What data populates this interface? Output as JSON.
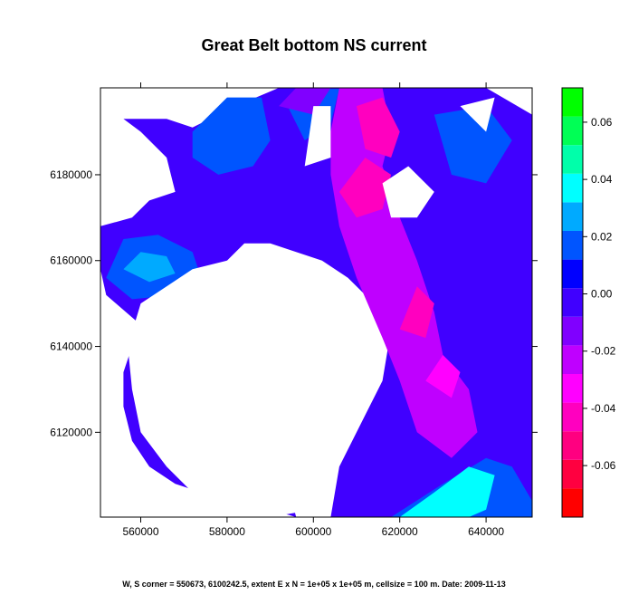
{
  "chart_data": {
    "type": "heatmap",
    "title": "Great Belt bottom NS current",
    "footnote": "W, S corner = 550673, 6100242.5, extent E x N = 1e+05 x 1e+05 m, cellsize = 100 m. Date: 2009-11-13",
    "xlim": [
      550673,
      650673
    ],
    "ylim": [
      6100242.5,
      6200242.5
    ],
    "x_ticks": [
      560000,
      580000,
      600000,
      620000,
      640000
    ],
    "x_tick_labels": [
      "560000",
      "580000",
      "600000",
      "620000",
      "640000"
    ],
    "y_ticks": [
      6120000,
      6140000,
      6160000,
      6180000
    ],
    "y_tick_labels": [
      "6120000",
      "6140000",
      "6160000",
      "6180000"
    ],
    "colorbar": {
      "range": [
        -0.078,
        0.072
      ],
      "breaks": [
        -0.078,
        -0.068,
        -0.058,
        -0.048,
        -0.038,
        -0.028,
        -0.018,
        -0.008,
        0.002,
        0.012,
        0.022,
        0.032,
        0.042,
        0.052,
        0.062,
        0.072
      ],
      "colors": [
        "#ff0000",
        "#ff0040",
        "#ff0080",
        "#ff00bf",
        "#ff00ff",
        "#bf00ff",
        "#8000ff",
        "#4000ff",
        "#0000ff",
        "#0055ff",
        "#00aaff",
        "#00ffff",
        "#00ffaa",
        "#00ff55",
        "#00ff00",
        "#80ff00"
      ],
      "ticks": [
        -0.06,
        -0.04,
        -0.02,
        0.0,
        0.02,
        0.04,
        0.06
      ],
      "tick_labels": [
        "-0.06",
        "-0.04",
        "-0.02",
        "0.00",
        "0.02",
        "0.04",
        "0.06"
      ]
    },
    "features": [
      {
        "name": "background",
        "value": -0.005,
        "path": [
          [
            550673,
            6100242
          ],
          [
            596000,
            6100242
          ],
          [
            594000,
            6108000
          ],
          [
            590000,
            6114000
          ],
          [
            586000,
            6116000
          ],
          [
            580000,
            6114000
          ],
          [
            570000,
            6118000
          ],
          [
            566000,
            6128000
          ],
          [
            563000,
            6139000
          ],
          [
            560000,
            6145000
          ],
          [
            552000,
            6152000
          ],
          [
            550673,
            6158000
          ],
          [
            550673,
            6168000
          ],
          [
            558000,
            6170000
          ],
          [
            562000,
            6174000
          ],
          [
            568000,
            6176000
          ],
          [
            566000,
            6184000
          ],
          [
            560000,
            6190000
          ],
          [
            556000,
            6193000
          ],
          [
            566000,
            6193000
          ],
          [
            572000,
            6191000
          ],
          [
            582000,
            6196000
          ],
          [
            592000,
            6200242
          ],
          [
            640000,
            6200242
          ],
          [
            650673,
            6194000
          ],
          [
            650673,
            6100242
          ],
          [
            604000,
            6100242
          ],
          [
            606000,
            6112000
          ],
          [
            612000,
            6124000
          ],
          [
            616000,
            6132000
          ],
          [
            618000,
            6144000
          ],
          [
            614000,
            6150000
          ],
          [
            608000,
            6156000
          ],
          [
            602000,
            6160000
          ],
          [
            596000,
            6162000
          ],
          [
            590000,
            6164000
          ],
          [
            584000,
            6164000
          ],
          [
            580000,
            6160000
          ],
          [
            576000,
            6158000
          ],
          [
            570000,
            6156000
          ],
          [
            566000,
            6152000
          ],
          [
            562000,
            6148000
          ],
          [
            558000,
            6140000
          ],
          [
            556000,
            6134000
          ],
          [
            556000,
            6126000
          ],
          [
            558000,
            6118000
          ],
          [
            562000,
            6112000
          ],
          [
            568000,
            6108000
          ],
          [
            574000,
            6106000
          ],
          [
            582000,
            6104000
          ],
          [
            590000,
            6102000
          ],
          [
            596000,
            6100242
          ]
        ]
      },
      {
        "name": "cyan-northwest",
        "value": 0.012,
        "path": [
          [
            572000,
            6190000
          ],
          [
            580000,
            6198000
          ],
          [
            588000,
            6198000
          ],
          [
            590000,
            6188000
          ],
          [
            586000,
            6182000
          ],
          [
            578000,
            6180000
          ],
          [
            572000,
            6184000
          ]
        ]
      },
      {
        "name": "cyan-west",
        "value": 0.012,
        "path": [
          [
            552000,
            6156000
          ],
          [
            556000,
            6165000
          ],
          [
            564000,
            6166000
          ],
          [
            572000,
            6162000
          ],
          [
            574000,
            6156000
          ],
          [
            568000,
            6152000
          ],
          [
            558000,
            6151000
          ]
        ]
      },
      {
        "name": "green-west",
        "value": 0.028,
        "path": [
          [
            556000,
            6158000
          ],
          [
            560000,
            6162000
          ],
          [
            566000,
            6161000
          ],
          [
            568000,
            6157000
          ],
          [
            562000,
            6155000
          ]
        ]
      },
      {
        "name": "cyan-north-center",
        "value": 0.012,
        "path": [
          [
            594000,
            6196000
          ],
          [
            598000,
            6200000
          ],
          [
            606000,
            6200000
          ],
          [
            604000,
            6192000
          ],
          [
            598000,
            6188000
          ]
        ]
      },
      {
        "name": "cyan-east",
        "value": 0.012,
        "path": [
          [
            628000,
            6194000
          ],
          [
            640000,
            6196000
          ],
          [
            646000,
            6188000
          ],
          [
            640000,
            6178000
          ],
          [
            632000,
            6180000
          ]
        ]
      },
      {
        "name": "cyan-southeast",
        "value": 0.012,
        "path": [
          [
            618000,
            6100242
          ],
          [
            630000,
            6108000
          ],
          [
            640000,
            6114000
          ],
          [
            646000,
            6112000
          ],
          [
            650673,
            6104000
          ],
          [
            650673,
            6100242
          ]
        ]
      },
      {
        "name": "green-southeast",
        "value": 0.038,
        "path": [
          [
            620000,
            6100242
          ],
          [
            628000,
            6106000
          ],
          [
            636000,
            6112000
          ],
          [
            642000,
            6110000
          ],
          [
            640000,
            6102000
          ],
          [
            636000,
            6100242
          ]
        ]
      },
      {
        "name": "purple-channel",
        "value": -0.022,
        "path": [
          [
            606000,
            6200242
          ],
          [
            616000,
            6200242
          ],
          [
            618000,
            6190000
          ],
          [
            616000,
            6182000
          ],
          [
            620000,
            6170000
          ],
          [
            624000,
            6160000
          ],
          [
            628000,
            6148000
          ],
          [
            630000,
            6138000
          ],
          [
            636000,
            6130000
          ],
          [
            638000,
            6120000
          ],
          [
            632000,
            6114000
          ],
          [
            624000,
            6120000
          ],
          [
            620000,
            6132000
          ],
          [
            616000,
            6142000
          ],
          [
            610000,
            6156000
          ],
          [
            606000,
            6168000
          ],
          [
            604000,
            6180000
          ],
          [
            604000,
            6190000
          ]
        ]
      },
      {
        "name": "magenta-north",
        "value": -0.045,
        "path": [
          [
            610000,
            6196000
          ],
          [
            616000,
            6198000
          ],
          [
            620000,
            6190000
          ],
          [
            618000,
            6184000
          ],
          [
            612000,
            6186000
          ]
        ]
      },
      {
        "name": "magenta-mid",
        "value": -0.042,
        "path": [
          [
            606000,
            6176000
          ],
          [
            612000,
            6184000
          ],
          [
            618000,
            6180000
          ],
          [
            616000,
            6172000
          ],
          [
            610000,
            6170000
          ]
        ]
      },
      {
        "name": "magenta-south",
        "value": -0.04,
        "path": [
          [
            620000,
            6144000
          ],
          [
            624000,
            6154000
          ],
          [
            628000,
            6150000
          ],
          [
            626000,
            6142000
          ]
        ]
      },
      {
        "name": "magenta-southmost",
        "value": -0.035,
        "path": [
          [
            626000,
            6132000
          ],
          [
            630000,
            6138000
          ],
          [
            634000,
            6134000
          ],
          [
            632000,
            6128000
          ]
        ]
      },
      {
        "name": "blue-north-center",
        "value": -0.012,
        "path": [
          [
            592000,
            6196000
          ],
          [
            596000,
            6200242
          ],
          [
            604000,
            6200242
          ],
          [
            600000,
            6194000
          ]
        ]
      }
    ],
    "land": [
      {
        "name": "funen-zealand-island",
        "path": [
          [
            560000,
            6150000
          ],
          [
            566000,
            6154000
          ],
          [
            572000,
            6158000
          ],
          [
            580000,
            6160000
          ],
          [
            588000,
            6162000
          ],
          [
            596000,
            6160000
          ],
          [
            602000,
            6156000
          ],
          [
            606000,
            6150000
          ],
          [
            610000,
            6144000
          ],
          [
            612000,
            6134000
          ],
          [
            610000,
            6126000
          ],
          [
            606000,
            6118000
          ],
          [
            602000,
            6110000
          ],
          [
            600000,
            6102000
          ],
          [
            590000,
            6100242
          ],
          [
            580000,
            6102000
          ],
          [
            572000,
            6106000
          ],
          [
            566000,
            6112000
          ],
          [
            560000,
            6120000
          ],
          [
            558000,
            6130000
          ],
          [
            557000,
            6140000
          ]
        ]
      },
      {
        "name": "north-island",
        "path": [
          [
            598000,
            6182000
          ],
          [
            600000,
            6196000
          ],
          [
            604000,
            6196000
          ],
          [
            604000,
            6184000
          ]
        ]
      },
      {
        "name": "east-island",
        "path": [
          [
            616000,
            6178000
          ],
          [
            622000,
            6182000
          ],
          [
            628000,
            6176000
          ],
          [
            624000,
            6170000
          ],
          [
            618000,
            6170000
          ]
        ]
      },
      {
        "name": "small-east-island",
        "path": [
          [
            634000,
            6196000
          ],
          [
            642000,
            6198000
          ],
          [
            640000,
            6190000
          ]
        ]
      }
    ]
  }
}
